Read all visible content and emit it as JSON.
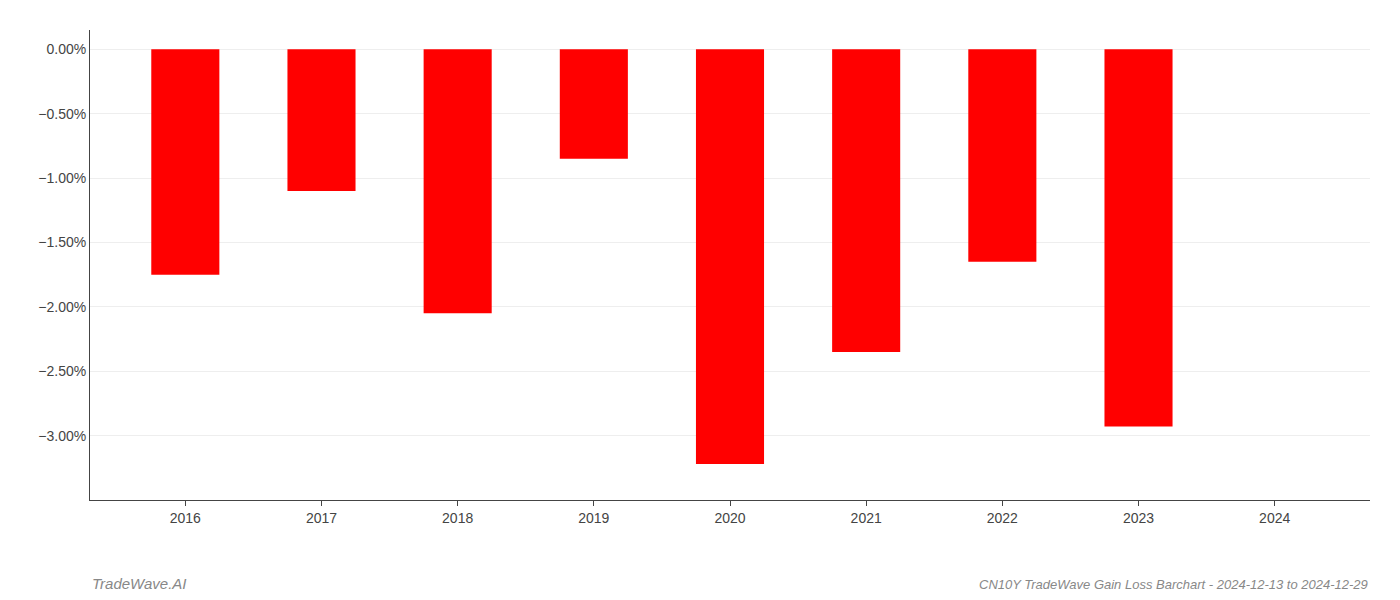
{
  "chart_data": {
    "type": "bar",
    "title": "CN10Y TradeWave Gain Loss Barchart - 2024-12-13 to 2024-12-29",
    "annotations": [
      "TradeWave.AI"
    ],
    "x": [
      2016,
      2017,
      2018,
      2019,
      2020,
      2021,
      2022,
      2023,
      2024
    ],
    "values": [
      -1.75,
      -1.1,
      -2.05,
      -0.85,
      -3.22,
      -2.35,
      -1.65,
      -2.93,
      null
    ],
    "color": "#ff0000",
    "xlim": [
      2015.3,
      2024.7
    ],
    "xticks": [
      2016,
      2017,
      2018,
      2019,
      2020,
      2021,
      2022,
      2023,
      2024
    ],
    "ylim": [
      -3.5,
      0.15
    ],
    "yticks": [
      {
        "value": 0.0,
        "label": "0.00%"
      },
      {
        "value": -0.5,
        "label": "−0.50%"
      },
      {
        "value": -1.0,
        "label": "−1.00%"
      },
      {
        "value": -1.5,
        "label": "−1.50%"
      },
      {
        "value": -2.0,
        "label": "−2.00%"
      },
      {
        "value": -2.5,
        "label": "−2.50%"
      },
      {
        "value": -3.0,
        "label": "−3.00%"
      }
    ],
    "grid": true
  }
}
